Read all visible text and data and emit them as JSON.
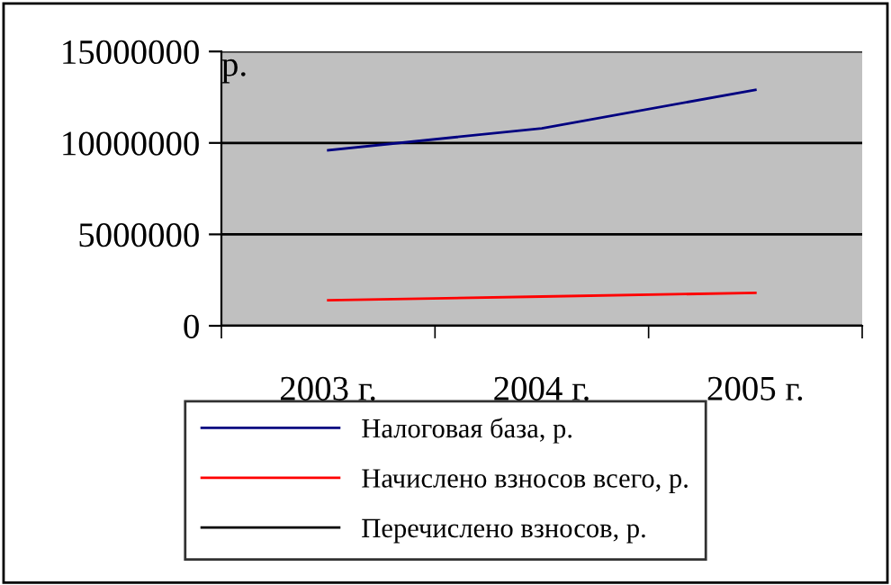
{
  "chart_data": {
    "type": "line",
    "ylabel": "р.",
    "categories": [
      "2003 г.",
      "2004 г.",
      "2005 г."
    ],
    "series": [
      {
        "name": "Налоговая база, р.",
        "color": "#000080",
        "values": [
          9600000,
          10800000,
          12900000
        ]
      },
      {
        "name": "Начислено взносов всего, р.",
        "color": "#ff0000",
        "values": [
          1400000,
          1600000,
          1800000
        ]
      },
      {
        "name": "Перечислено взносов, р.",
        "color": "#000000",
        "values": [
          null,
          null,
          null
        ]
      }
    ],
    "ylim": [
      0,
      15000000
    ],
    "yticks": [
      0,
      5000000,
      10000000,
      15000000
    ],
    "grid": "y",
    "legend": "bottom",
    "marker": "none",
    "line_style": "solid"
  }
}
